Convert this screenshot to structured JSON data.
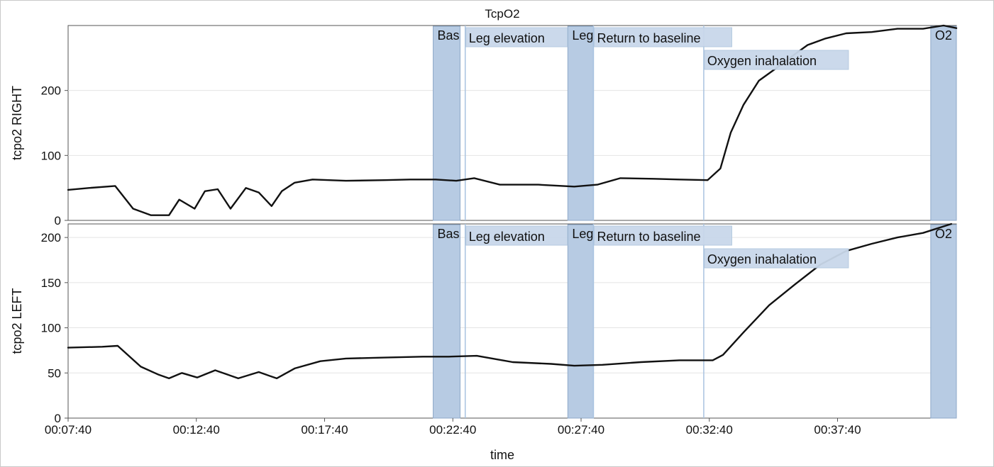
{
  "chart_data": {
    "type": "line",
    "title": "TcpO2",
    "xlabel": "time",
    "x_ticks": [
      "00:07:40",
      "00:12:40",
      "00:17:40",
      "00:22:40",
      "00:27:40",
      "00:32:40",
      "00:37:40"
    ],
    "x_unit": "minutes",
    "x_range": [
      7.667,
      42.3
    ],
    "grid": "horizontal",
    "band_color": "#b7cbe3",
    "label_box_color": "#c9d8ea",
    "line_color": "#111111",
    "events": [
      {
        "label": "Baseline",
        "visible_text": "Bas",
        "start": 21.9,
        "end": 22.95
      },
      {
        "label": "Leg elevation",
        "visible_text": "Leg elevation",
        "marker": 23.15
      },
      {
        "label": "Leg elevation",
        "visible_text": "Leg",
        "start": 27.15,
        "end": 28.15
      },
      {
        "label": "Return to baseline",
        "visible_text": "Return to baseline",
        "marker": 28.15
      },
      {
        "label": "Oxygen inahalation",
        "visible_text": "Oxygen inahalation",
        "marker": 32.45
      },
      {
        "label": "O2",
        "visible_text": "O2",
        "start": 41.3,
        "end": 42.3
      }
    ],
    "panels": [
      {
        "ylabel": "tcpo2 RIGHT",
        "ylim": [
          0,
          300
        ],
        "yticks": [
          0,
          100,
          200
        ],
        "series": [
          {
            "x": [
              7.667,
              8.5,
              9.5,
              10.2,
              10.9,
              11.6,
              12.0,
              12.6,
              13.0,
              13.5,
              14.0,
              14.6,
              15.1,
              15.6,
              16.0,
              16.5,
              17.2,
              18.5,
              20.0,
              21.0,
              22.0,
              22.8,
              23.5,
              24.5,
              26.0,
              27.4,
              28.3,
              29.2,
              30.5,
              31.5,
              32.6,
              33.1,
              33.5,
              34.0,
              34.6,
              35.3,
              35.8,
              36.5,
              37.2,
              38.0,
              39.0,
              40.0,
              41.0,
              41.8,
              42.3
            ],
            "y": [
              47,
              50,
              53,
              18,
              8,
              8,
              32,
              18,
              45,
              48,
              18,
              50,
              43,
              22,
              45,
              58,
              63,
              61,
              62,
              63,
              63,
              61,
              65,
              55,
              55,
              52,
              55,
              65,
              64,
              63,
              62,
              80,
              135,
              178,
              215,
              235,
              250,
              270,
              280,
              288,
              290,
              295,
              295,
              300,
              296
            ]
          }
        ]
      },
      {
        "ylabel": "tcpo2 LEFT",
        "ylim": [
          0,
          215
        ],
        "yticks": [
          0,
          50,
          100,
          150,
          200
        ],
        "series": [
          {
            "x": [
              7.667,
              9.0,
              9.6,
              10.5,
              11.2,
              11.6,
              12.1,
              12.7,
              13.4,
              14.3,
              15.1,
              15.8,
              16.5,
              17.5,
              18.5,
              20.0,
              21.5,
              22.5,
              23.6,
              25.0,
              26.5,
              27.4,
              28.5,
              30.0,
              31.5,
              32.8,
              33.2,
              34.0,
              35.0,
              36.0,
              37.0,
              38.0,
              39.0,
              40.0,
              41.0,
              42.1
            ],
            "y": [
              78,
              79,
              80,
              57,
              48,
              44,
              50,
              45,
              53,
              44,
              51,
              44,
              55,
              63,
              66,
              67,
              68,
              68,
              69,
              62,
              60,
              58,
              59,
              62,
              64,
              64,
              70,
              95,
              125,
              148,
              170,
              185,
              193,
              200,
              205,
              215
            ]
          }
        ]
      }
    ]
  }
}
